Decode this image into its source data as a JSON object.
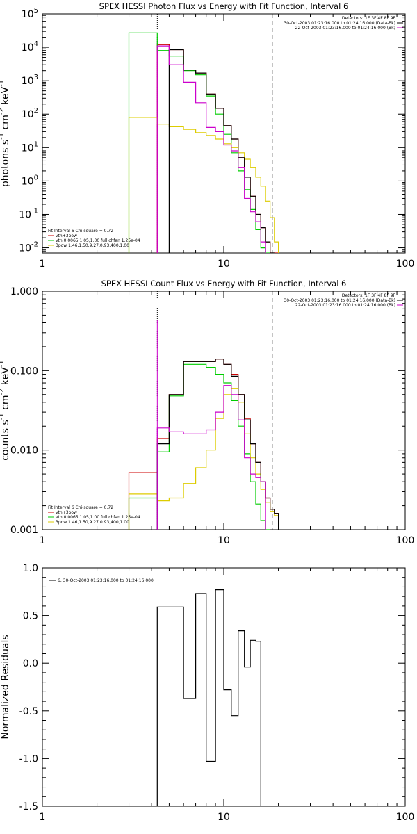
{
  "colors": {
    "frame": "#000000",
    "vth_thick2pow": "#cc0000",
    "vth": "#00cc00",
    "bpow": "#ddcc00",
    "bk": "#cc00cc",
    "data": "#000000"
  },
  "chart_data": [
    {
      "type": "line",
      "title": "SPEX HESSI Photon Flux vs Energy with Fit Function, Interval 6",
      "ylabel_parts": [
        "photons s",
        "-1",
        " cm",
        "-2",
        " keV",
        "-1"
      ],
      "xscale": "log",
      "yscale": "log",
      "xlim": [
        1,
        100
      ],
      "ylim": [
        0.007,
        100000
      ],
      "xticks": [
        1,
        10,
        100
      ],
      "xtick_labels": [
        "1",
        "10",
        "100"
      ],
      "yticks": [
        0.01,
        0.1,
        1,
        10,
        100,
        1000,
        10000,
        100000
      ],
      "ytick_base": "10",
      "ytick_exps": [
        "-2",
        "-1",
        "0",
        "1",
        "2",
        "3",
        "4",
        "5"
      ],
      "vlines": [
        {
          "x": 4.3,
          "style": "dotted",
          "color": "#000000"
        },
        {
          "x": 4.3,
          "style": "solid",
          "color": "#cc00cc"
        },
        {
          "x": 18.5,
          "style": "dashed",
          "color": "#000000"
        }
      ],
      "info_lines": [
        "Detectors: 1F 3F 4F 8F 9F",
        "30-Oct-2003 01:23:16.000 to 01:24:16.000 (Data-Bk)",
        "22-Oct-2003 01:23:16.000 to 01:24:16.000 (Bk)"
      ],
      "info_colors": [
        "",
        "#000000",
        "#cc00cc"
      ],
      "fit_header": "Fit Interval  6    Chi-square = 0.72",
      "legend": [
        {
          "label": "vth+3pow",
          "color": "#cc0000"
        },
        {
          "label": "vth 0.0065,1.05,1.00  full chfan 1.25e-04",
          "color": "#00cc00"
        },
        {
          "label": "3pow 1.46,1.50,9.27,0.93,400,1.00",
          "color": "#ddcc00"
        }
      ],
      "edges": [
        3.0,
        4.3,
        5.0,
        6.0,
        7.0,
        8.0,
        9.0,
        10.0,
        11.0,
        12.0,
        13.0,
        14.0,
        15.0,
        16.0,
        17.0,
        18.0,
        19.0,
        20.0
      ],
      "series": [
        {
          "name": "vth+3pow",
          "color": "#cc0000",
          "values": [
            null,
            12000,
            8500,
            2100,
            1700,
            400,
            150,
            45,
            18,
            5,
            1.3,
            0.35,
            0.1,
            0.04,
            0.015,
            0.006,
            0.004
          ]
        },
        {
          "name": "vth",
          "color": "#00cc00",
          "values": [
            27000,
            8000,
            5500,
            2000,
            1500,
            350,
            100,
            25,
            7,
            2,
            0.55,
            0.14,
            0.035,
            0.01,
            0.003,
            null,
            null
          ]
        },
        {
          "name": "3pow",
          "color": "#ddcc00",
          "values": [
            80,
            50,
            42,
            35,
            28,
            23,
            18,
            13,
            10,
            7,
            4.5,
            2.5,
            1.3,
            0.7,
            0.25,
            0.08,
            0.015
          ]
        },
        {
          "name": "data",
          "color": "#000000",
          "values": [
            null,
            null,
            8500,
            2100,
            1700,
            400,
            150,
            45,
            18,
            5,
            1.3,
            0.35,
            0.1,
            0.04,
            0.015,
            0.006,
            null
          ]
        },
        {
          "name": "Bk",
          "color": "#cc00cc",
          "values": [
            null,
            11000,
            3000,
            900,
            220,
            40,
            30,
            12,
            8,
            2.5,
            0.3,
            0.12,
            0.06,
            0.015,
            null,
            null,
            null
          ]
        }
      ]
    },
    {
      "type": "line",
      "title": "SPEX HESSI Count Flux vs Energy with Fit Function, Interval 6",
      "ylabel_parts": [
        "counts s",
        "-1",
        " cm",
        "-2",
        " keV",
        "-1"
      ],
      "xscale": "log",
      "yscale": "log",
      "xlim": [
        1,
        100
      ],
      "ylim": [
        0.001,
        1.0
      ],
      "xticks": [
        1,
        10,
        100
      ],
      "xtick_labels": [
        "1",
        "10",
        "100"
      ],
      "yticks": [
        0.001,
        0.01,
        0.1,
        1.0
      ],
      "ytick_labels": [
        "0.001",
        "0.010",
        "0.100",
        "1.000"
      ],
      "vlines": [
        {
          "x": 4.3,
          "style": "dotted",
          "color": "#000000"
        },
        {
          "x": 4.3,
          "style": "solid",
          "color": "#cc00cc"
        },
        {
          "x": 18.5,
          "style": "dashed",
          "color": "#000000"
        }
      ],
      "info_lines": [
        "Detectors: 1F 3F 4F 8F 9F",
        "30-Oct-2003 01:23:16.000 to 01:24:16.000 (Data-Bk)",
        "22-Oct-2003 01:23:16.000 to 01:24:16.000 (Bk)"
      ],
      "info_colors": [
        "",
        "#000000",
        "#cc00cc"
      ],
      "fit_header": "Fit Interval  6    Chi-square = 0.72",
      "legend": [
        {
          "label": "vth+3pow",
          "color": "#cc0000"
        },
        {
          "label": "vth 0.0065,1.05,1.00  full chfan 1.25e-04",
          "color": "#00cc00"
        },
        {
          "label": "3pow 1.46,1.50,9.27,0.93,400,1.00",
          "color": "#ddcc00"
        }
      ],
      "edges": [
        3.0,
        4.3,
        5.0,
        6.0,
        7.0,
        8.0,
        9.0,
        10.0,
        11.0,
        12.0,
        13.0,
        14.0,
        15.0,
        16.0,
        17.0,
        18.0,
        19.0,
        20.0
      ],
      "series": [
        {
          "name": "vth+3pow",
          "color": "#cc0000",
          "values": [
            0.0052,
            0.014,
            0.05,
            0.13,
            0.13,
            0.13,
            0.14,
            0.12,
            0.09,
            0.05,
            0.025,
            0.012,
            0.007,
            0.004,
            0.0025,
            0.0018,
            0.0016
          ]
        },
        {
          "name": "vth",
          "color": "#00cc00",
          "values": [
            0.0025,
            0.0095,
            0.048,
            0.12,
            0.12,
            0.11,
            0.09,
            0.07,
            0.042,
            0.02,
            0.009,
            0.004,
            0.0021,
            0.0013,
            0.0009,
            null,
            null
          ]
        },
        {
          "name": "3pow",
          "color": "#ddcc00",
          "values": [
            0.0028,
            0.0023,
            0.0025,
            0.0038,
            0.006,
            0.01,
            0.025,
            0.05,
            0.06,
            0.04,
            0.016,
            0.008,
            0.005,
            0.0032,
            0.0022,
            0.0017,
            0.0015
          ]
        },
        {
          "name": "data",
          "color": "#000000",
          "values": [
            null,
            0.012,
            0.05,
            0.13,
            0.13,
            0.13,
            0.14,
            0.12,
            0.085,
            0.05,
            0.024,
            0.012,
            0.007,
            0.004,
            0.0025,
            0.0018,
            0.0016
          ]
        },
        {
          "name": "Bk",
          "color": "#cc00cc",
          "values": [
            null,
            0.019,
            0.017,
            0.016,
            0.016,
            0.018,
            0.03,
            0.065,
            0.05,
            0.024,
            0.008,
            0.005,
            0.0045,
            0.004,
            null,
            null,
            null
          ]
        }
      ]
    },
    {
      "type": "line",
      "title": "",
      "ylabel": "Normalized Residuals",
      "xscale": "log",
      "yscale": "linear",
      "xlim": [
        1,
        100
      ],
      "ylim": [
        -1.5,
        1.0
      ],
      "xticks": [
        1,
        10,
        100
      ],
      "xtick_labels": [
        "1",
        "10",
        "100"
      ],
      "yticks": [
        -1.5,
        -1.0,
        -0.5,
        0.0,
        0.5,
        1.0
      ],
      "ytick_labels": [
        "-1.5",
        "-1.0",
        "-0.5",
        "0.0",
        "0.5",
        "1.0"
      ],
      "legend": [
        {
          "label": "6, 30-Oct-2003 01:23:16.000 to 01:24:16.000",
          "color": "#000000"
        }
      ],
      "edges": [
        4.3,
        5.0,
        6.0,
        7.0,
        8.0,
        9.0,
        10.0,
        11.0,
        12.0,
        13.0,
        14.0,
        15.0,
        16.0,
        17.0,
        18.0
      ],
      "series": [
        {
          "name": "6, 30-Oct-2003 01:23:16.000 to 01:24:16.000",
          "color": "#000000",
          "values": [
            0.59,
            0.59,
            -0.37,
            0.73,
            -1.03,
            0.77,
            -0.28,
            -0.55,
            0.34,
            -0.04,
            0.24,
            0.23,
            -1.5,
            -1.5
          ]
        }
      ]
    }
  ]
}
